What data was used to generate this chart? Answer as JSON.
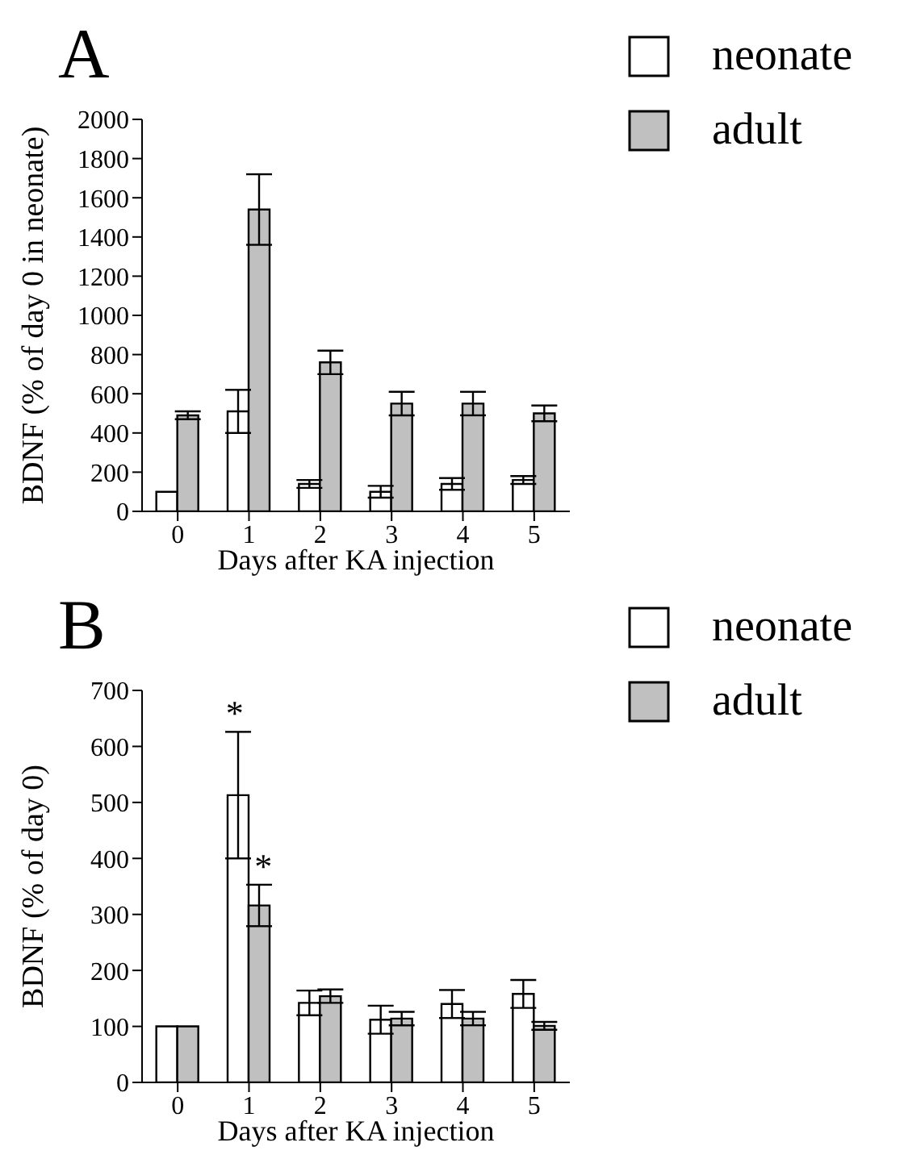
{
  "chart_data": [
    {
      "type": "bar",
      "title": "A",
      "xlabel": "Days after KA injection",
      "ylabel": "BDNF (% of day 0 in neonate)",
      "categories": [
        "0",
        "1",
        "2",
        "3",
        "4",
        "5"
      ],
      "series": [
        {
          "name": "neonate",
          "color": "#ffffff",
          "values": [
            100,
            510,
            140,
            100,
            140,
            160
          ],
          "errors": [
            null,
            110,
            20,
            30,
            30,
            20
          ]
        },
        {
          "name": "adult",
          "color": "#c0c0c0",
          "values": [
            490,
            1540,
            760,
            550,
            550,
            500
          ],
          "errors": [
            20,
            180,
            60,
            60,
            60,
            40
          ]
        }
      ],
      "ylim": [
        0,
        2000
      ],
      "yticks": [
        0,
        200,
        400,
        600,
        800,
        1000,
        1200,
        1400,
        1600,
        1800,
        2000
      ],
      "grid": false,
      "legend": "top right"
    },
    {
      "type": "bar",
      "title": "B",
      "xlabel": "Days after KA injection",
      "ylabel": "BDNF (% of day 0)",
      "categories": [
        "0",
        "1",
        "2",
        "3",
        "4",
        "5"
      ],
      "series": [
        {
          "name": "neonate",
          "color": "#ffffff",
          "values": [
            100,
            513,
            142,
            112,
            140,
            158
          ],
          "errors": [
            null,
            113,
            22,
            25,
            25,
            25
          ]
        },
        {
          "name": "adult",
          "color": "#c0c0c0",
          "values": [
            100,
            316,
            154,
            114,
            114,
            101
          ],
          "errors": [
            null,
            37,
            12,
            12,
            12,
            7
          ]
        }
      ],
      "ylim": [
        0,
        700
      ],
      "yticks": [
        0,
        100,
        200,
        300,
        400,
        500,
        600,
        700
      ],
      "grid": false,
      "legend": "top right",
      "annotations": [
        {
          "text": "*",
          "x": "1",
          "y": 626
        },
        {
          "text": "*",
          "x": "1",
          "y": 353
        }
      ]
    }
  ]
}
